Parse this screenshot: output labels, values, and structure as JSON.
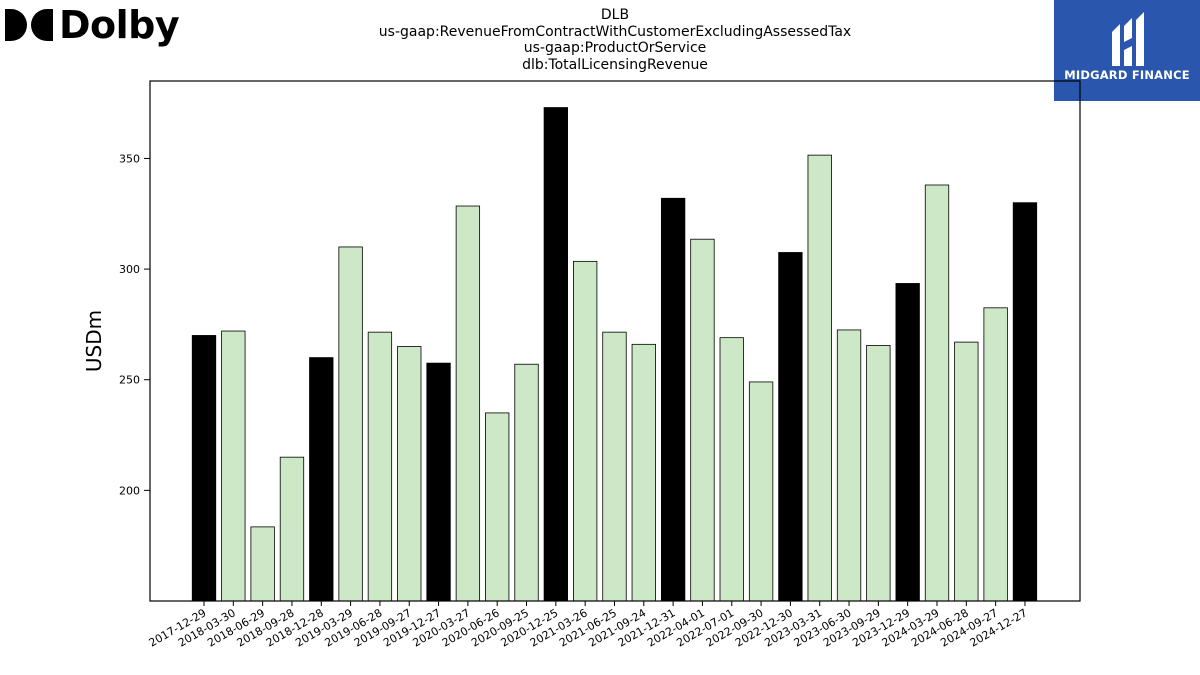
{
  "company_logo": {
    "name": "dolby-logo",
    "wordmark": "Dolby"
  },
  "brand_badge": {
    "name": "midgard-finance-logo",
    "text": "MIDGARD FINANCE",
    "color": "#2a57ad"
  },
  "chart_data": {
    "type": "bar",
    "title_lines": [
      "DLB",
      "us-gaap:RevenueFromContractWithCustomerExcludingAssessedTax",
      "us-gaap:ProductOrService",
      "dlb:TotalLicensingRevenue"
    ],
    "xlabel": "",
    "ylabel": "USDm",
    "ylim": [
      150,
      385
    ],
    "yticks": [
      200,
      250,
      300,
      350
    ],
    "grid": false,
    "legend": "none",
    "colors": {
      "q4_highlight": "#000000",
      "regular": "#cde8c6",
      "edge": "#000000"
    },
    "categories": [
      "2017-12-29",
      "2018-03-30",
      "2018-06-29",
      "2018-09-28",
      "2018-12-28",
      "2019-03-29",
      "2019-06-28",
      "2019-09-27",
      "2019-12-27",
      "2020-03-27",
      "2020-06-26",
      "2020-09-25",
      "2020-12-25",
      "2021-03-26",
      "2021-06-25",
      "2021-09-24",
      "2021-12-31",
      "2022-04-01",
      "2022-07-01",
      "2022-09-30",
      "2022-12-30",
      "2023-03-31",
      "2023-06-30",
      "2023-09-29",
      "2023-12-29",
      "2024-03-29",
      "2024-06-28",
      "2024-09-27",
      "2024-12-27"
    ],
    "values": [
      270,
      272,
      183.5,
      215,
      260,
      310,
      271.5,
      265,
      257.5,
      328.5,
      235,
      257,
      373,
      303.5,
      271.5,
      266,
      332,
      313.5,
      269,
      249,
      307.5,
      351.5,
      272.5,
      265.5,
      293.5,
      338,
      267,
      282.5,
      330
    ],
    "highlight": [
      true,
      false,
      false,
      false,
      true,
      false,
      false,
      false,
      true,
      false,
      false,
      false,
      true,
      false,
      false,
      false,
      true,
      false,
      false,
      false,
      true,
      false,
      false,
      false,
      true,
      false,
      false,
      false,
      true
    ]
  }
}
